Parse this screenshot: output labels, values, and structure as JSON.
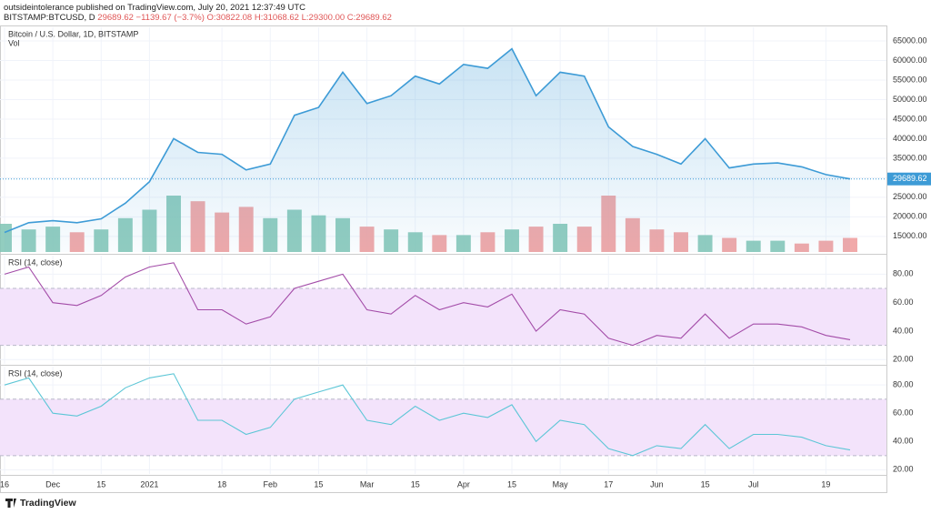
{
  "header": {
    "publisher": "outsideintolerance published on TradingView.com, July 20, 2021 12:37:49 UTC",
    "symbol": "BITSTAMP:BTCUSD, D",
    "last": "29689.62",
    "change": "−1139.67 (−3.7%)",
    "open": "O:30822.08",
    "high": "H:31068.62",
    "low": "L:29300.00",
    "close": "C:29689.62"
  },
  "footer": {
    "brand": "TradingView"
  },
  "chart_data": [
    {
      "type": "line",
      "title": "Bitcoin / U.S. Dollar, 1D, BITSTAMP",
      "categories": [
        "16",
        null,
        "Dec",
        null,
        "15",
        null,
        "2021",
        null,
        null,
        "18",
        null,
        "Feb",
        null,
        "15",
        null,
        "Mar",
        null,
        "15",
        null,
        "Apr",
        null,
        "15",
        null,
        "May",
        null,
        "17",
        null,
        "Jun",
        null,
        "15",
        null,
        "Jul",
        null,
        null,
        "19",
        null
      ],
      "values": [
        16000,
        18500,
        19000,
        18500,
        19500,
        23500,
        29000,
        40000,
        36500,
        36000,
        32000,
        33500,
        46000,
        48000,
        57000,
        49000,
        51000,
        56000,
        54000,
        59000,
        58000,
        63000,
        51000,
        57000,
        56000,
        43000,
        38000,
        36000,
        33500,
        40000,
        32500,
        33500,
        33800,
        32800,
        30800,
        29689.62
      ],
      "color": "#3d9bd6",
      "last_value": 29689.62,
      "volume": {
        "name": "Vol",
        "values": [
          10,
          8,
          9,
          7,
          8,
          12,
          15,
          20,
          18,
          14,
          16,
          12,
          15,
          13,
          12,
          9,
          8,
          7,
          6,
          6,
          7,
          8,
          9,
          10,
          9,
          20,
          12,
          8,
          7,
          6,
          5,
          4,
          4,
          3,
          4,
          5
        ],
        "up_color": "#7fc4b4",
        "down_color": "#ef9a9a"
      },
      "ylim": [
        11000,
        68500
      ],
      "yticks": [
        {
          "value": 15000,
          "label": "15000.00"
        },
        {
          "value": 20000,
          "label": "20000.00"
        },
        {
          "value": 25000,
          "label": "25000.00"
        },
        {
          "value": 30000,
          "label": "30000.00"
        },
        {
          "value": 35000,
          "label": "35000.00"
        },
        {
          "value": 40000,
          "label": "40000.00"
        },
        {
          "value": 45000,
          "label": "45000.00"
        },
        {
          "value": 50000,
          "label": "50000.00"
        },
        {
          "value": 55000,
          "label": "55000.00"
        },
        {
          "value": 60000,
          "label": "60000.00"
        },
        {
          "value": 65000,
          "label": "65000.00"
        }
      ]
    },
    {
      "type": "line",
      "title": "RSI (14, close)",
      "values": [
        80,
        85,
        60,
        58,
        65,
        78,
        85,
        88,
        55,
        55,
        45,
        50,
        70,
        75,
        80,
        55,
        52,
        65,
        55,
        60,
        57,
        66,
        40,
        55,
        52,
        35,
        30,
        37,
        35,
        52,
        35,
        45,
        45,
        43,
        37,
        34
      ],
      "color": "#a34ca8",
      "band": [
        30,
        70
      ],
      "band_color": "#f3e3fb",
      "ylim": [
        17,
        93
      ],
      "yticks": [
        {
          "value": 20,
          "label": "20.00"
        },
        {
          "value": 40,
          "label": "40.00"
        },
        {
          "value": 60,
          "label": "60.00"
        },
        {
          "value": 80,
          "label": "80.00"
        }
      ]
    },
    {
      "type": "line",
      "title": "RSI (14, close)",
      "values": [
        80,
        85,
        60,
        58,
        65,
        78,
        85,
        88,
        55,
        55,
        45,
        50,
        70,
        75,
        80,
        55,
        52,
        65,
        55,
        60,
        57,
        66,
        40,
        55,
        52,
        35,
        30,
        37,
        35,
        52,
        35,
        45,
        45,
        43,
        37,
        34
      ],
      "color": "#5cc6d6",
      "band": [
        30,
        70
      ],
      "band_color": "#f3e3fb",
      "ylim": [
        17,
        93
      ],
      "yticks": [
        {
          "value": 20,
          "label": "20.00"
        },
        {
          "value": 40,
          "label": "40.00"
        },
        {
          "value": 60,
          "label": "60.00"
        },
        {
          "value": 80,
          "label": "80.00"
        }
      ]
    }
  ]
}
